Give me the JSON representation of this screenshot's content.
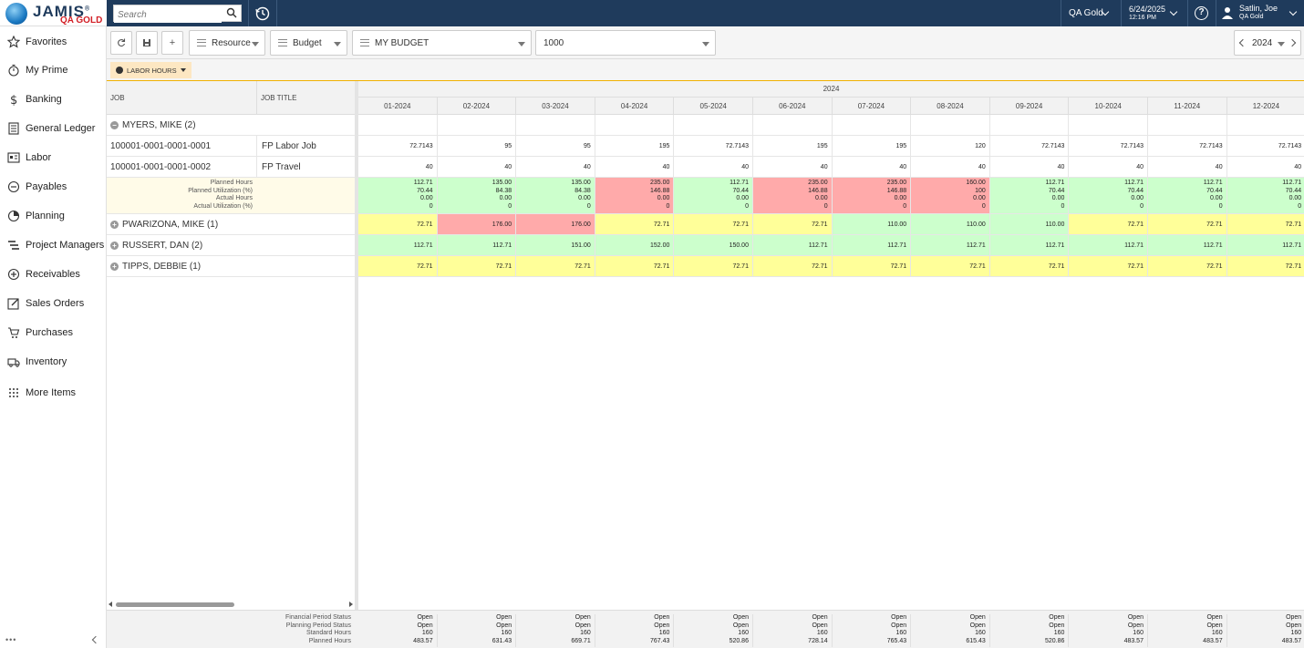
{
  "app": {
    "logo_main": "JAMIS",
    "logo_reg": "®",
    "logo_sub": "QA GOLD",
    "search_placeholder": "Search",
    "company": "QA Gold",
    "date": "6/24/2025",
    "time": "12:16 PM",
    "user_name": "Satlin, Joe",
    "user_company": "QA Gold"
  },
  "sidebar": {
    "items": [
      {
        "label": "Favorites",
        "icon": "star-icon"
      },
      {
        "label": "My Prime",
        "icon": "stopwatch-icon"
      },
      {
        "label": "Banking",
        "icon": "dollar-icon"
      },
      {
        "label": "General Ledger",
        "icon": "ledger-icon"
      },
      {
        "label": "Labor",
        "icon": "labor-icon"
      },
      {
        "label": "Payables",
        "icon": "minus-circle-icon"
      },
      {
        "label": "Planning",
        "icon": "pie-chart-icon"
      },
      {
        "label": "Project Managers",
        "icon": "gantt-icon"
      },
      {
        "label": "Receivables",
        "icon": "plus-circle-icon"
      },
      {
        "label": "Sales Orders",
        "icon": "edit-icon"
      },
      {
        "label": "Purchases",
        "icon": "cart-icon"
      },
      {
        "label": "Inventory",
        "icon": "truck-icon"
      },
      {
        "label": "More Items",
        "icon": "grid-dots-icon"
      }
    ],
    "dots": "•••"
  },
  "toolbar": {
    "resource": "Resource",
    "budget": "Budget",
    "my_budget": "MY BUDGET",
    "value": "1000",
    "year": "2024",
    "add": "+"
  },
  "tab": {
    "label": "LABOR HOURS"
  },
  "left_headers": {
    "job": "JOB",
    "job_title": "JOB TITLE"
  },
  "grid": {
    "year": "2024",
    "months": [
      "01-2024",
      "02-2024",
      "03-2024",
      "04-2024",
      "05-2024",
      "06-2024",
      "07-2024",
      "08-2024",
      "09-2024",
      "10-2024",
      "11-2024",
      "12-2024"
    ]
  },
  "rows": {
    "myers": {
      "label": "MYERS, MIKE (2)"
    },
    "job1": {
      "job": "100001-0001-0001-0001",
      "title": "FP Labor Job",
      "values": [
        "72.7143",
        "95",
        "95",
        "195",
        "72.7143",
        "195",
        "195",
        "120",
        "72.7143",
        "72.7143",
        "72.7143",
        "72.7143"
      ]
    },
    "job2": {
      "job": "100001-0001-0001-0002",
      "title": "FP Travel",
      "values": [
        "40",
        "40",
        "40",
        "40",
        "40",
        "40",
        "40",
        "40",
        "40",
        "40",
        "40",
        "40"
      ]
    },
    "summary": {
      "labels": [
        "Planned Hours",
        "Planned Utilization (%)",
        "Actual Hours",
        "Actual Utilization (%)"
      ],
      "planned_hours": [
        "112.71",
        "135.00",
        "135.00",
        "235.00",
        "112.71",
        "235.00",
        "235.00",
        "160.00",
        "112.71",
        "112.71",
        "112.71",
        "112.71"
      ],
      "planned_util": [
        "70.44",
        "84.38",
        "84.38",
        "146.88",
        "70.44",
        "146.88",
        "146.88",
        "100",
        "70.44",
        "70.44",
        "70.44",
        "70.44"
      ],
      "actual_hours": [
        "0.00",
        "0.00",
        "0.00",
        "0.00",
        "0.00",
        "0.00",
        "0.00",
        "0.00",
        "0.00",
        "0.00",
        "0.00",
        "0.00"
      ],
      "actual_util": [
        "0",
        "0",
        "0",
        "0",
        "0",
        "0",
        "0",
        "0",
        "0",
        "0",
        "0",
        "0"
      ],
      "status": [
        "green",
        "green",
        "green",
        "red",
        "green",
        "red",
        "red",
        "red",
        "green",
        "green",
        "green",
        "green"
      ]
    },
    "pwarizona": {
      "label": "PWARIZONA, MIKE (1)",
      "values": [
        "72.71",
        "176.00",
        "176.00",
        "72.71",
        "72.71",
        "72.71",
        "110.00",
        "110.00",
        "110.00",
        "72.71",
        "72.71",
        "72.71"
      ],
      "status": [
        "yellow",
        "red",
        "red",
        "yellow",
        "yellow",
        "yellow",
        "green",
        "green",
        "green",
        "yellow",
        "yellow",
        "yellow"
      ]
    },
    "russert": {
      "label": "RUSSERT, DAN (2)",
      "values": [
        "112.71",
        "112.71",
        "151.00",
        "152.00",
        "150.00",
        "112.71",
        "112.71",
        "112.71",
        "112.71",
        "112.71",
        "112.71",
        "112.71"
      ],
      "status": [
        "green",
        "green",
        "green",
        "green",
        "green",
        "green",
        "green",
        "green",
        "green",
        "green",
        "green",
        "green"
      ]
    },
    "tipps": {
      "label": "TIPPS, DEBBIE (1)",
      "values": [
        "72.71",
        "72.71",
        "72.71",
        "72.71",
        "72.71",
        "72.71",
        "72.71",
        "72.71",
        "72.71",
        "72.71",
        "72.71",
        "72.71"
      ],
      "status": [
        "yellow",
        "yellow",
        "yellow",
        "yellow",
        "yellow",
        "yellow",
        "yellow",
        "yellow",
        "yellow",
        "yellow",
        "yellow",
        "yellow"
      ]
    }
  },
  "footer": {
    "labels": [
      "Financial Period Status",
      "Planning Period Status",
      "Standard Hours",
      "Planned Hours"
    ],
    "fin_status": [
      "Open",
      "Open",
      "Open",
      "Open",
      "Open",
      "Open",
      "Open",
      "Open",
      "Open",
      "Open",
      "Open",
      "Open"
    ],
    "plan_status": [
      "Open",
      "Open",
      "Open",
      "Open",
      "Open",
      "Open",
      "Open",
      "Open",
      "Open",
      "Open",
      "Open",
      "Open"
    ],
    "standard": [
      "160",
      "160",
      "160",
      "160",
      "160",
      "160",
      "160",
      "160",
      "160",
      "160",
      "160",
      "160"
    ],
    "planned": [
      "483.57",
      "631.43",
      "669.71",
      "767.43",
      "520.86",
      "728.14",
      "765.43",
      "615.43",
      "520.86",
      "483.57",
      "483.57",
      "483.57"
    ]
  },
  "colors": {
    "topbar": "#1f3b5c",
    "green": "#ccffcc",
    "red": "#ffaaaa",
    "yellow": "#ffff99",
    "accent": "#f0b000"
  }
}
